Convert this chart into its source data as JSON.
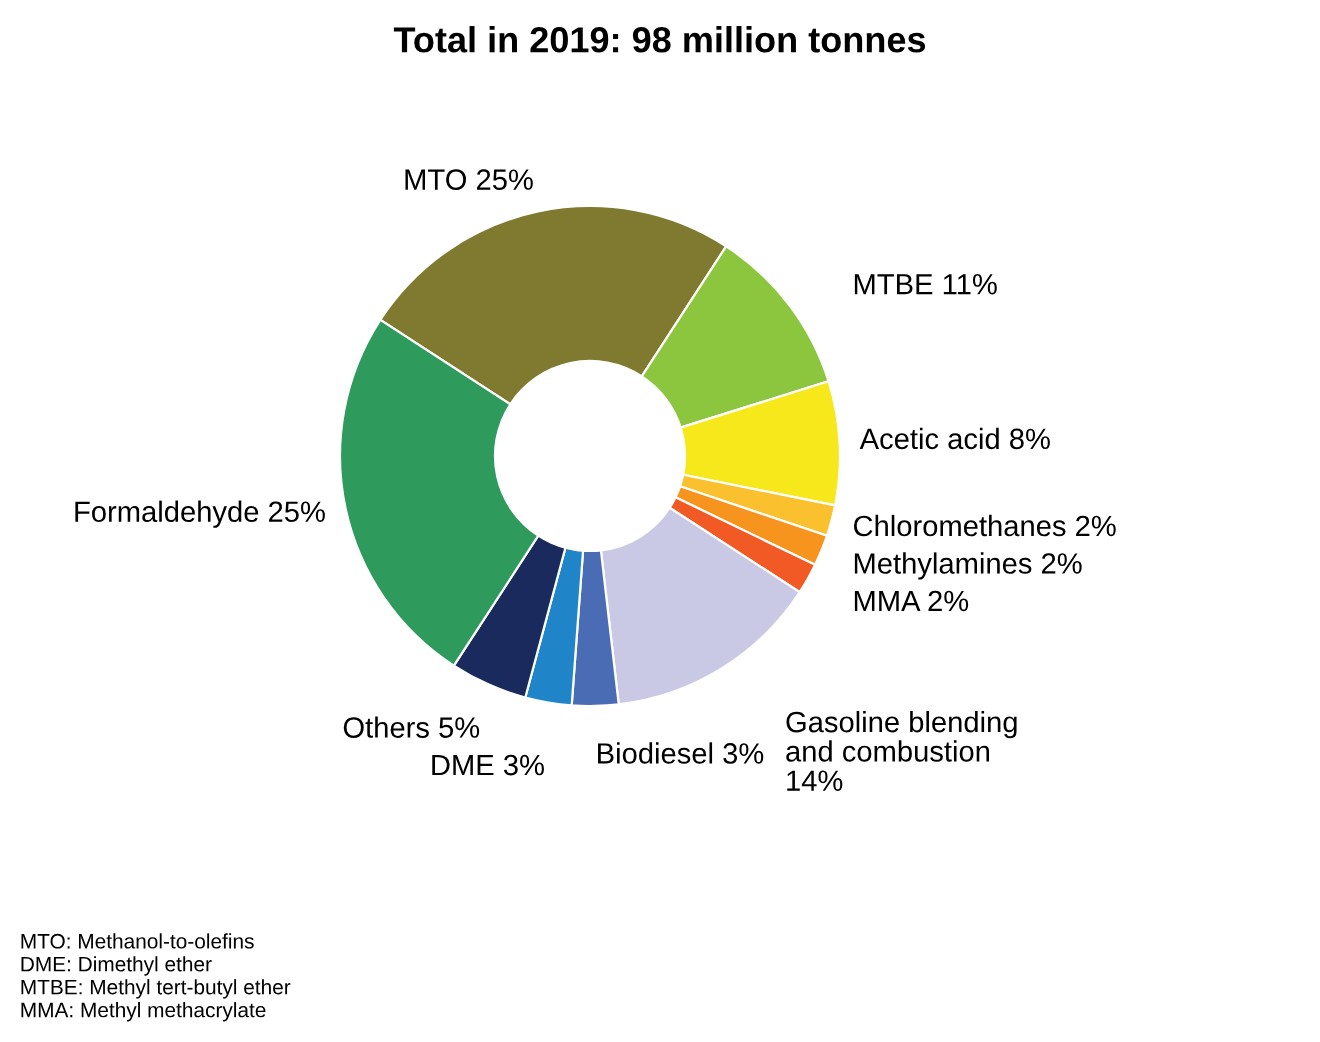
{
  "chart_data": {
    "type": "donut",
    "title": "Total in 2019: 98 million tonnes",
    "categories": [
      "MTO",
      "MTBE",
      "Acetic acid",
      "Chloromethanes",
      "Methylamines",
      "MMA",
      "Gasoline blending\nand combustion",
      "Biodiesel",
      "DME",
      "Others",
      "Formaldehyde"
    ],
    "values": [
      25,
      11,
      8,
      2,
      2,
      2,
      14,
      3,
      3,
      5,
      25
    ],
    "colors": [
      "#7f7a30",
      "#8cc63f",
      "#f7e81c",
      "#fbc02d",
      "#f7941d",
      "#f15a24",
      "#c9c9e6",
      "#4a6cb5",
      "#1f85c8",
      "#1b2a5c",
      "#2e9a5c"
    ],
    "value_labels": [
      "25%",
      "11%",
      "8%",
      "2%",
      "2%",
      "2%",
      "14%",
      "3%",
      "3%",
      "5%",
      "25%"
    ],
    "annotations": [
      "MTO: Methanol-to-olefins",
      "DME: Dimethyl ether",
      "MTBE: Methyl tert-butyl ether",
      "MMA: Methyl methacrylate"
    ],
    "legend": false
  }
}
